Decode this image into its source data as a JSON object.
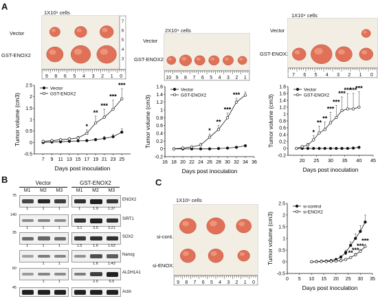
{
  "panels": {
    "A": "A",
    "B": "B",
    "C": "C"
  },
  "panelA": {
    "experiments": [
      {
        "cells_label": "1X10⁶ cells",
        "rows": [
          "Vector",
          "GST-ENOX2"
        ],
        "ruler": [
          "9",
          "8",
          "6",
          "5",
          "4",
          "3",
          "2",
          "1",
          "0"
        ],
        "ruler_side": [
          "7",
          "6",
          "5",
          "4",
          "3"
        ]
      },
      {
        "cells_label": "2X10⁴ cells",
        "rows": [
          "Vector",
          "GST-ENOX2"
        ],
        "ruler": [
          "10",
          "9",
          "8",
          "7",
          "6",
          "5",
          "4",
          "3",
          "2",
          "1"
        ],
        "ruler_side": []
      },
      {
        "cells_label": "1X10⁴ cells",
        "rows": [
          "Vector",
          "GST-ENOX2"
        ],
        "ruler": [
          "7",
          "6",
          "5",
          "4",
          "3",
          "2",
          "1",
          "0"
        ],
        "ruler_side": []
      }
    ]
  },
  "panelB": {
    "groups": [
      "Vector",
      "GST-ENOX2"
    ],
    "lanes": [
      "M1",
      "M2",
      "M3",
      "M1",
      "M2",
      "M3"
    ],
    "blots": [
      {
        "name": "ENOX2",
        "mw": "75",
        "numbers": [
          "1",
          "1",
          "1",
          "1",
          "1.9",
          "1.37"
        ],
        "levels": [
          0.75,
          0.95,
          0.8,
          0.9,
          1.0,
          0.85
        ]
      },
      {
        "name": "SIRT1",
        "mw": "140",
        "numbers": [
          "1",
          "1",
          "1",
          "3.1",
          "3.5",
          "3.21"
        ],
        "levels": [
          0.3,
          0.35,
          0.3,
          0.9,
          1.0,
          0.9
        ]
      },
      {
        "name": "SOX2",
        "mw": "35",
        "numbers": [
          "1",
          "1",
          "1",
          "1.5",
          "1.6",
          "1.63"
        ],
        "levels": [
          0.5,
          0.55,
          0.5,
          0.85,
          0.9,
          0.9
        ]
      },
      {
        "name": "Nanog",
        "mw": "",
        "numbers": [
          "",
          "1",
          "1",
          "",
          "1.6",
          "1.43"
        ],
        "levels": [
          0.15,
          0.4,
          0.35,
          0.25,
          0.7,
          0.6
        ]
      },
      {
        "name": "ALDH1A1",
        "mw": "60",
        "numbers": [
          "",
          "1",
          "1",
          "",
          "2.5",
          "6.5"
        ],
        "levels": [
          0.2,
          0.35,
          0.3,
          0.4,
          0.8,
          1.0
        ]
      },
      {
        "name": "Actin",
        "mw": "45",
        "numbers": [],
        "levels": [
          1,
          1,
          1,
          1,
          1,
          1
        ]
      }
    ]
  },
  "panelC": {
    "cells_label": "1X10⁶ cells",
    "rows": [
      "si-cont.",
      "si-ENOX2"
    ],
    "ruler": [
      "9",
      "8",
      "7",
      "6",
      "5",
      "4",
      "3",
      "2",
      "1",
      "0"
    ]
  },
  "colors": {
    "tumor": "#e07058",
    "tumor_light": "#f0a488",
    "paper": "#f4efe6",
    "line": "#111111"
  },
  "chart_data": [
    {
      "type": "line",
      "ylabel": "Tumor volume (cm3)",
      "xlabel": "Days post inoculation",
      "xlim": [
        5,
        27
      ],
      "ylim": [
        -0.5,
        2.5
      ],
      "xticks": [
        7,
        9,
        11,
        13,
        15,
        17,
        19,
        21,
        23,
        25
      ],
      "yticks": [
        -0.5,
        0,
        0.5,
        1,
        1.5,
        2,
        2.5
      ],
      "legend_position": "top-left",
      "series": [
        {
          "name": "Vector",
          "marker": "filled",
          "x": [
            7,
            9,
            11,
            13,
            15,
            17,
            19,
            21,
            23,
            25
          ],
          "y": [
            0,
            0.02,
            0.03,
            0.05,
            0.07,
            0.08,
            0.12,
            0.18,
            0.25,
            0.45
          ],
          "err": [
            0.02,
            0.02,
            0.03,
            0.03,
            0.04,
            0.05,
            0.06,
            0.08,
            0.1,
            0.15
          ]
        },
        {
          "name": "GST-ENOX2",
          "marker": "open",
          "x": [
            7,
            9,
            11,
            13,
            15,
            17,
            19,
            21,
            23,
            25
          ],
          "y": [
            0.05,
            0.08,
            0.12,
            0.15,
            0.2,
            0.4,
            0.85,
            1.1,
            1.45,
            1.9
          ],
          "err": [
            0.02,
            0.03,
            0.04,
            0.05,
            0.07,
            0.15,
            0.3,
            0.35,
            0.4,
            0.45
          ]
        }
      ],
      "annotations": [
        {
          "x": 17,
          "text": "*"
        },
        {
          "x": 19,
          "text": "**"
        },
        {
          "x": 21,
          "text": "***"
        },
        {
          "x": 23,
          "text": "***"
        },
        {
          "x": 25,
          "text": "***"
        }
      ]
    },
    {
      "type": "line",
      "ylabel": "Tumor volume (cm3)",
      "xlabel": "Days post inoculation",
      "xlim": [
        16,
        36
      ],
      "ylim": [
        -0.2,
        1.6
      ],
      "xticks": [
        16,
        18,
        20,
        22,
        24,
        26,
        28,
        30,
        32,
        34,
        36
      ],
      "yticks": [
        -0.2,
        0,
        0.2,
        0.4,
        0.6,
        0.8,
        1,
        1.2,
        1.4,
        1.6
      ],
      "legend_position": "top-left",
      "series": [
        {
          "name": "Vector",
          "marker": "filled",
          "x": [
            18,
            20,
            22,
            24,
            26,
            28,
            30,
            32,
            34
          ],
          "y": [
            0,
            0,
            0,
            0,
            0,
            0.01,
            0.02,
            0.04,
            0.08
          ],
          "err": [
            0,
            0,
            0,
            0,
            0,
            0.01,
            0.01,
            0.02,
            0.02
          ]
        },
        {
          "name": "GST-ENOX2",
          "marker": "open",
          "x": [
            18,
            20,
            22,
            24,
            26,
            28,
            30,
            32,
            34
          ],
          "y": [
            0,
            0.02,
            0.05,
            0.1,
            0.3,
            0.5,
            0.8,
            1.2,
            1.38
          ],
          "err": [
            0,
            0.01,
            0.02,
            0.04,
            0.08,
            0.1,
            0.12,
            0.1,
            0.08
          ]
        }
      ],
      "annotations": [
        {
          "x": 26,
          "text": "*"
        },
        {
          "x": 28,
          "text": "**"
        },
        {
          "x": 30,
          "text": "***"
        },
        {
          "x": 32,
          "text": "***"
        }
      ]
    },
    {
      "type": "line",
      "ylabel": "Tumor volume (cm3)",
      "xlabel": "Days post inoculation",
      "xlim": [
        15,
        45
      ],
      "ylim": [
        -0.2,
        1.8
      ],
      "xticks": [
        20,
        25,
        30,
        35,
        40,
        45
      ],
      "yticks": [
        -0.2,
        0,
        0.2,
        0.4,
        0.6,
        0.8,
        1,
        1.2,
        1.4,
        1.6,
        1.8
      ],
      "legend_position": "top-left",
      "series": [
        {
          "name": "Vector",
          "marker": "filled",
          "x": [
            18,
            20,
            22,
            24,
            26,
            28,
            30,
            32,
            34,
            36,
            38,
            40
          ],
          "y": [
            0,
            0,
            0,
            0,
            0,
            0,
            0,
            0,
            0,
            0,
            0.01,
            0.03
          ],
          "err": [
            0,
            0,
            0,
            0,
            0,
            0,
            0,
            0,
            0,
            0,
            0.01,
            0.02
          ]
        },
        {
          "name": "GST-ENOX2",
          "marker": "open",
          "x": [
            18,
            20,
            22,
            24,
            26,
            28,
            30,
            32,
            34,
            36,
            38,
            40
          ],
          "y": [
            0,
            0.05,
            0.1,
            0.25,
            0.45,
            0.55,
            0.75,
            0.9,
            1.1,
            1.15,
            1.15,
            1.2
          ],
          "err": [
            0,
            0.03,
            0.05,
            0.12,
            0.2,
            0.22,
            0.3,
            0.35,
            0.4,
            0.45,
            0.45,
            0.45
          ]
        }
      ],
      "annotations": [
        {
          "x": 24,
          "text": "*"
        },
        {
          "x": 26,
          "text": "**"
        },
        {
          "x": 28,
          "text": "**"
        },
        {
          "x": 30,
          "text": "***"
        },
        {
          "x": 32,
          "text": "***"
        },
        {
          "x": 34,
          "text": "***"
        },
        {
          "x": 36,
          "text": "***"
        },
        {
          "x": 38,
          "text": "***"
        },
        {
          "x": 40,
          "text": "***"
        }
      ]
    },
    {
      "type": "line",
      "ylabel": "Tumor volume (cm3)",
      "xlabel": "Days post inoculation",
      "xlim": [
        0,
        35
      ],
      "ylim": [
        -0.5,
        2.5
      ],
      "xticks": [
        0,
        5,
        10,
        15,
        20,
        25,
        30,
        35
      ],
      "yticks": [
        -0.5,
        0,
        0.5,
        1,
        1.5,
        2,
        2.5
      ],
      "legend_position": "top-left",
      "series": [
        {
          "name": "si-control",
          "marker": "filled",
          "x": [
            10,
            12,
            14,
            16,
            18,
            20,
            22,
            24,
            26,
            28,
            30,
            32
          ],
          "y": [
            0,
            0.01,
            0.02,
            0.03,
            0.05,
            0.1,
            0.2,
            0.4,
            0.7,
            1.0,
            1.3,
            1.7
          ],
          "err": [
            0,
            0.01,
            0.01,
            0.02,
            0.03,
            0.04,
            0.06,
            0.1,
            0.15,
            0.2,
            0.25,
            0.3
          ]
        },
        {
          "name": "si-ENOX2",
          "marker": "open",
          "x": [
            10,
            12,
            14,
            16,
            18,
            20,
            22,
            24,
            26,
            28,
            30,
            32
          ],
          "y": [
            0,
            0,
            0.01,
            0.01,
            0.02,
            0.03,
            0.05,
            0.1,
            0.18,
            0.3,
            0.45,
            0.65
          ],
          "err": [
            0,
            0,
            0.01,
            0.01,
            0.01,
            0.02,
            0.03,
            0.04,
            0.05,
            0.06,
            0.08,
            0.1
          ]
        }
      ],
      "annotations": [
        {
          "x": 24,
          "text": "*"
        },
        {
          "x": 26,
          "text": "**"
        },
        {
          "x": 28,
          "text": "***"
        },
        {
          "x": 30,
          "text": "***"
        },
        {
          "x": 32,
          "text": "***"
        }
      ]
    }
  ]
}
